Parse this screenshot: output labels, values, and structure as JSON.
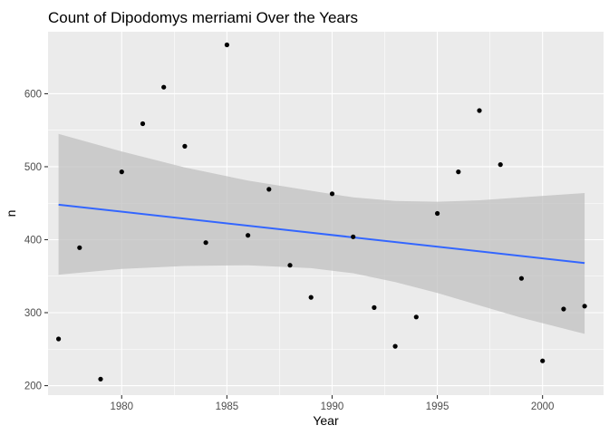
{
  "chart_data": {
    "type": "scatter",
    "title": "Count of Dipodomys merriami Over the Years",
    "xlabel": "Year",
    "ylabel": "n",
    "xlim": [
      1976.5,
      2002.9
    ],
    "ylim": [
      187,
      685
    ],
    "x_ticks": [
      1980,
      1985,
      1990,
      1995,
      2000
    ],
    "x_tick_labels": [
      "1980",
      "1985",
      "1990",
      "1995",
      "2000"
    ],
    "y_ticks": [
      200,
      300,
      400,
      500,
      600
    ],
    "y_tick_labels": [
      "200",
      "300",
      "400",
      "500",
      "600"
    ],
    "grid": true,
    "points": [
      {
        "x": 1977,
        "y": 264
      },
      {
        "x": 1978,
        "y": 389
      },
      {
        "x": 1979,
        "y": 209
      },
      {
        "x": 1980,
        "y": 493
      },
      {
        "x": 1981,
        "y": 559
      },
      {
        "x": 1982,
        "y": 609
      },
      {
        "x": 1983,
        "y": 528
      },
      {
        "x": 1984,
        "y": 396
      },
      {
        "x": 1985,
        "y": 667
      },
      {
        "x": 1986,
        "y": 406
      },
      {
        "x": 1987,
        "y": 469
      },
      {
        "x": 1988,
        "y": 365
      },
      {
        "x": 1989,
        "y": 321
      },
      {
        "x": 1990,
        "y": 463
      },
      {
        "x": 1991,
        "y": 404
      },
      {
        "x": 1992,
        "y": 307
      },
      {
        "x": 1993,
        "y": 254
      },
      {
        "x": 1994,
        "y": 294
      },
      {
        "x": 1995,
        "y": 436
      },
      {
        "x": 1996,
        "y": 493
      },
      {
        "x": 1997,
        "y": 577
      },
      {
        "x": 1998,
        "y": 503
      },
      {
        "x": 1999,
        "y": 347
      },
      {
        "x": 2000,
        "y": 234
      },
      {
        "x": 2001,
        "y": 305
      },
      {
        "x": 2002,
        "y": 309
      }
    ],
    "trend_line": {
      "method": "lm",
      "x": [
        1977,
        2002
      ],
      "y": [
        448,
        368
      ],
      "ci_upper": [
        [
          1977,
          545
        ],
        [
          1980,
          521
        ],
        [
          1983,
          499
        ],
        [
          1986,
          481
        ],
        [
          1989,
          467
        ],
        [
          1991,
          458
        ],
        [
          1993,
          453
        ],
        [
          1995,
          452
        ],
        [
          1997,
          454
        ],
        [
          1999,
          458
        ],
        [
          2002,
          464
        ]
      ],
      "ci_lower": [
        [
          1977,
          352
        ],
        [
          1980,
          360
        ],
        [
          1983,
          364
        ],
        [
          1986,
          365
        ],
        [
          1989,
          361
        ],
        [
          1991,
          354
        ],
        [
          1993,
          342
        ],
        [
          1995,
          327
        ],
        [
          1997,
          310
        ],
        [
          1999,
          293
        ],
        [
          2002,
          271
        ]
      ]
    },
    "colors": {
      "panel_background": "#EBEBEB",
      "grid_major": "#FFFFFF",
      "point": "#000000",
      "trend_line": "#3366FF",
      "ci_band": "#BEBEBE"
    }
  }
}
